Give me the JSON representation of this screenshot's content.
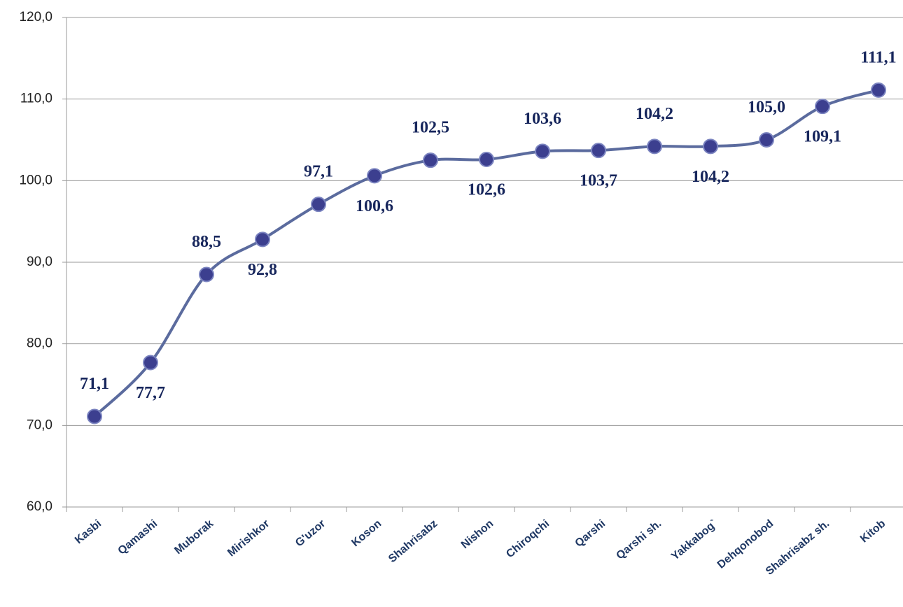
{
  "chart_data": {
    "type": "line",
    "categories": [
      "Kasbi",
      "Qamashi",
      "Muborak",
      "Mirishkor",
      "G'uzor",
      "Koson",
      "Shahrisabz",
      "Nishon",
      "Chiroqchi",
      "Qarshi",
      "Qarshi sh.",
      "Yakkabog`",
      "Dehqonobod",
      "Shahrisabz sh.",
      "Kitob"
    ],
    "series": [
      {
        "color": "#5b6b9e",
        "values": [
          71.1,
          77.7,
          88.5,
          92.8,
          97.1,
          100.6,
          102.5,
          102.6,
          103.6,
          103.7,
          104.2,
          104.2,
          105.0,
          109.1,
          111.1
        ],
        "value_labels": [
          "71,1",
          "77,7",
          "88,5",
          "92,8",
          "97,1",
          "100,6",
          "102,5",
          "102,6",
          "103,6",
          "103,7",
          "104,2",
          "104,2",
          "105,0",
          "109,1",
          "111,1"
        ]
      }
    ],
    "ylim": [
      60,
      120
    ],
    "yticks": [
      {
        "value": 60,
        "label": "60,0"
      },
      {
        "value": 70,
        "label": "70,0"
      },
      {
        "value": 80,
        "label": "80,0"
      },
      {
        "value": 90,
        "label": "90,0"
      },
      {
        "value": 100,
        "label": "100,0"
      },
      {
        "value": 110,
        "label": "110,0"
      },
      {
        "value": 120,
        "label": "120,0"
      }
    ],
    "grid": true,
    "marker_color": "#3c3f8f"
  }
}
